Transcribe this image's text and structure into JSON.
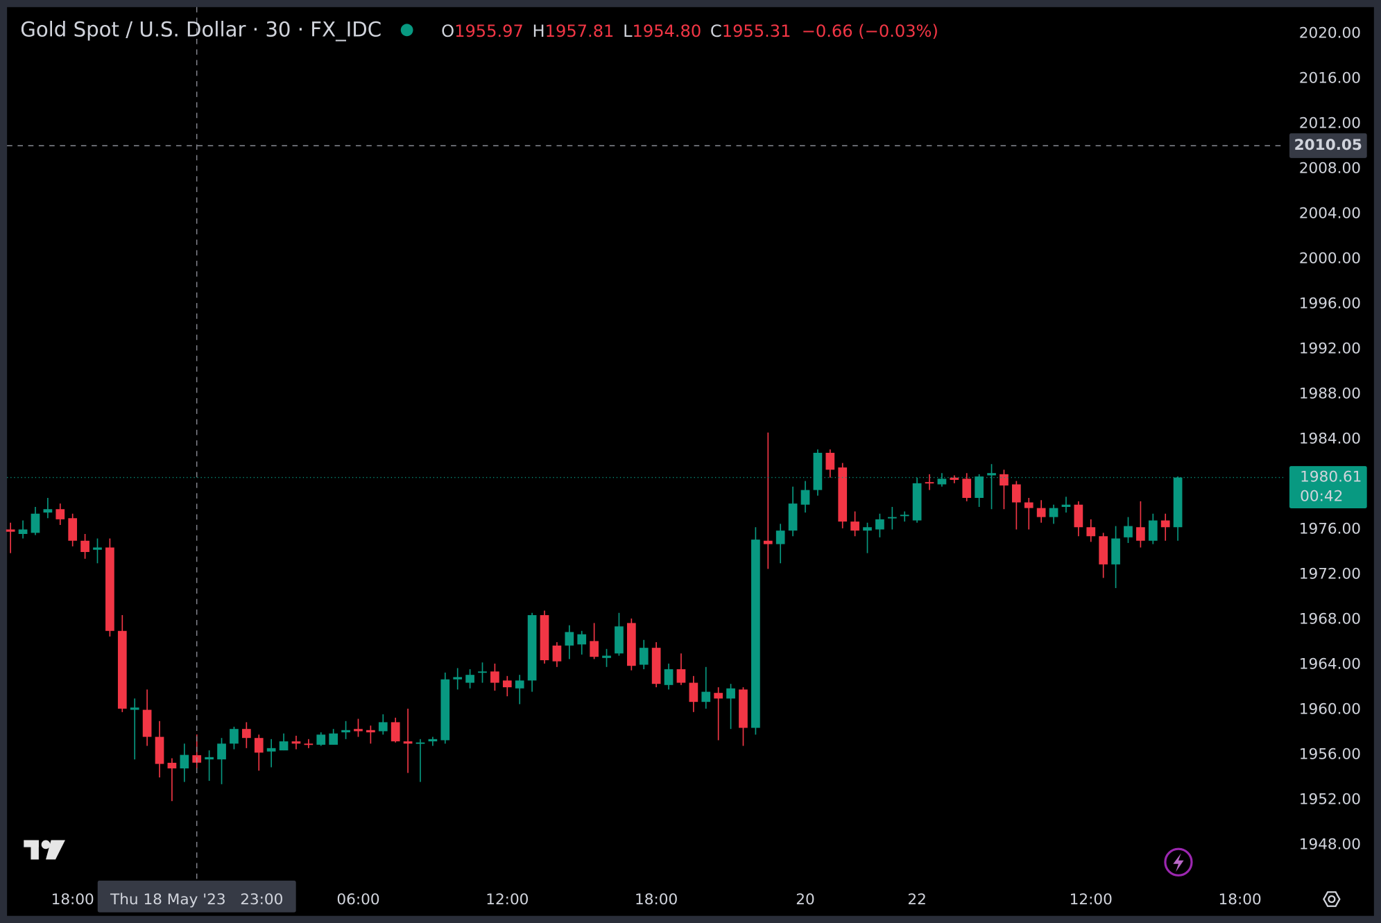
{
  "chart_data": {
    "type": "candlestick",
    "title": "Gold Spot / U.S. Dollar · 30 · FX_IDC",
    "legend": [
      [
        "O",
        "1955.97"
      ],
      [
        "H",
        "1957.81"
      ],
      [
        "L",
        "1954.80"
      ],
      [
        "C",
        "1955.31"
      ]
    ],
    "change": "−0.66 (−0.03%)",
    "up_color": "#089981",
    "down_color": "#f23645",
    "grid": false,
    "x": [
      0,
      1,
      2,
      3,
      4,
      5,
      6,
      7,
      8,
      9,
      10,
      11,
      12,
      13,
      14,
      15,
      16,
      17,
      18,
      19,
      20,
      21,
      22,
      23,
      24,
      25,
      26,
      27,
      28,
      29,
      30,
      31,
      32,
      33,
      34,
      35,
      36,
      37,
      38,
      39,
      40,
      41,
      42,
      43,
      44,
      45,
      46,
      47,
      48,
      49,
      50,
      51,
      52,
      53,
      54,
      55,
      56,
      57,
      58,
      59,
      60,
      61,
      62,
      63,
      64,
      65,
      66,
      67,
      68,
      69,
      70,
      71,
      72,
      73,
      74,
      75,
      76,
      77,
      78,
      79,
      80,
      81,
      82,
      83,
      84,
      85,
      86,
      87,
      88,
      89,
      90,
      91,
      92,
      93,
      94
    ],
    "open": [
      1976.0,
      1975.6,
      1975.7,
      1977.5,
      1977.8,
      1977.0,
      1975.0,
      1974.2,
      1974.4,
      1967.0,
      1960.0,
      1960.0,
      1957.6,
      1955.3,
      1954.8,
      1955.97,
      1955.6,
      1955.6,
      1957.0,
      1958.3,
      1957.5,
      1956.3,
      1956.4,
      1957.2,
      1957.0,
      1956.9,
      1956.9,
      1958.0,
      1958.3,
      1958.2,
      1958.1,
      1958.9,
      1957.2,
      1957.0,
      1957.2,
      1957.3,
      1962.7,
      1962.4,
      1963.3,
      1963.4,
      1962.6,
      1961.9,
      1962.6,
      1968.4,
      1965.7,
      1965.7,
      1965.8,
      1966.1,
      1964.6,
      1965.0,
      1967.7,
      1964.0,
      1965.5,
      1962.2,
      1963.6,
      1962.4,
      1960.7,
      1961.5,
      1961.0,
      1961.8,
      1958.4,
      1975.0,
      1974.7,
      1975.9,
      1978.2,
      1979.5,
      1982.8,
      1981.5,
      1976.7,
      1975.9,
      1976.0,
      1977.0,
      1977.2,
      1976.8,
      1980.2,
      1980.0,
      1980.6,
      1980.5,
      1978.8,
      1980.8,
      1980.9,
      1980.0,
      1978.4,
      1977.9,
      1977.1,
      1978.0,
      1978.2,
      1976.2,
      1975.4,
      1972.9,
      1975.3,
      1976.2,
      1975.0,
      1976.8,
      1976.2
    ],
    "high": [
      1976.6,
      1976.8,
      1978.0,
      1978.8,
      1978.3,
      1977.4,
      1975.6,
      1975.2,
      1975.2,
      1968.4,
      1961.0,
      1961.8,
      1959.0,
      1955.7,
      1957.0,
      1957.81,
      1956.4,
      1957.5,
      1958.5,
      1958.9,
      1957.8,
      1957.4,
      1957.9,
      1957.7,
      1957.4,
      1958.0,
      1958.3,
      1959.0,
      1959.2,
      1958.6,
      1959.6,
      1959.3,
      1960.1,
      1957.4,
      1957.6,
      1963.3,
      1963.7,
      1963.6,
      1964.2,
      1964.1,
      1963.0,
      1963.1,
      1968.6,
      1968.8,
      1966.0,
      1967.5,
      1967.0,
      1967.7,
      1965.4,
      1968.6,
      1968.1,
      1966.2,
      1966.0,
      1964.1,
      1965.0,
      1963.0,
      1963.8,
      1962.0,
      1962.3,
      1962.0,
      1976.2,
      1984.6,
      1976.5,
      1979.8,
      1980.3,
      1983.1,
      1983.1,
      1981.9,
      1977.6,
      1976.6,
      1977.4,
      1978.0,
      1977.6,
      1980.6,
      1980.9,
      1981.0,
      1980.8,
      1981.0,
      1980.9,
      1981.8,
      1981.3,
      1980.3,
      1978.8,
      1978.6,
      1978.2,
      1978.9,
      1978.5,
      1976.9,
      1975.7,
      1976.3,
      1977.1,
      1978.5,
      1977.4,
      1977.4,
      1980.7
    ],
    "low": [
      1973.9,
      1975.2,
      1975.5,
      1977.0,
      1976.4,
      1974.5,
      1973.4,
      1973.0,
      1966.5,
      1959.8,
      1955.6,
      1956.8,
      1954.0,
      1951.9,
      1953.6,
      1954.8,
      1953.7,
      1953.4,
      1956.5,
      1956.6,
      1954.6,
      1954.9,
      1956.4,
      1956.5,
      1956.6,
      1956.8,
      1956.9,
      1957.4,
      1957.6,
      1957.0,
      1957.8,
      1957.1,
      1954.4,
      1953.6,
      1956.8,
      1957.0,
      1961.8,
      1961.9,
      1962.4,
      1961.7,
      1961.2,
      1960.5,
      1961.6,
      1964.1,
      1963.8,
      1964.5,
      1964.9,
      1964.5,
      1963.8,
      1964.8,
      1963.5,
      1963.6,
      1962.0,
      1961.8,
      1962.2,
      1959.8,
      1960.1,
      1957.3,
      1958.3,
      1956.8,
      1957.8,
      1972.5,
      1973.0,
      1975.4,
      1977.5,
      1979.0,
      1980.6,
      1976.1,
      1975.4,
      1973.9,
      1975.3,
      1976.0,
      1976.7,
      1976.6,
      1979.5,
      1979.8,
      1980.1,
      1978.5,
      1978.0,
      1977.8,
      1977.8,
      1976.0,
      1976.0,
      1976.6,
      1976.5,
      1977.5,
      1975.4,
      1974.9,
      1971.7,
      1970.8,
      1974.8,
      1974.4,
      1974.7,
      1975.0,
      1975.0
    ],
    "close": [
      1975.8,
      1976.0,
      1977.4,
      1977.8,
      1976.9,
      1975.0,
      1974.0,
      1974.4,
      1967.0,
      1960.1,
      1960.2,
      1957.6,
      1955.2,
      1954.8,
      1956.0,
      1955.31,
      1955.8,
      1957.0,
      1958.3,
      1957.5,
      1956.2,
      1956.6,
      1957.2,
      1957.0,
      1956.9,
      1957.8,
      1957.9,
      1958.2,
      1958.1,
      1958.0,
      1958.9,
      1957.2,
      1957.0,
      1957.1,
      1957.4,
      1962.7,
      1962.9,
      1963.1,
      1963.4,
      1962.4,
      1962.0,
      1962.6,
      1968.4,
      1964.4,
      1964.3,
      1966.9,
      1966.7,
      1964.7,
      1964.8,
      1967.4,
      1963.9,
      1965.5,
      1962.3,
      1963.6,
      1962.4,
      1960.7,
      1961.6,
      1961.0,
      1961.9,
      1958.4,
      1975.1,
      1974.7,
      1975.9,
      1978.3,
      1979.5,
      1982.8,
      1981.3,
      1976.7,
      1975.9,
      1976.2,
      1976.9,
      1977.1,
      1977.3,
      1980.1,
      1980.1,
      1980.5,
      1980.4,
      1978.8,
      1980.7,
      1981.0,
      1979.9,
      1978.4,
      1977.9,
      1977.1,
      1977.9,
      1978.2,
      1976.2,
      1975.4,
      1972.9,
      1975.2,
      1976.3,
      1975.0,
      1976.8,
      1976.2,
      1980.61
    ],
    "xlim": [
      -0.28,
      102.7
    ],
    "xticks": [
      {
        "value": 5,
        "label": "18:00"
      },
      {
        "value": 28,
        "label": "06:00"
      },
      {
        "value": 40,
        "label": "12:00"
      },
      {
        "value": 52,
        "label": "18:00"
      },
      {
        "value": 64,
        "label": "20"
      },
      {
        "value": 73,
        "label": "22"
      },
      {
        "value": 87,
        "label": "12:00"
      },
      {
        "value": 99,
        "label": "18:00"
      }
    ],
    "ylim": [
      1945.0,
      2022.34
    ],
    "yticks": [
      {
        "value": 2020,
        "label": "2020.00"
      },
      {
        "value": 2016,
        "label": "2016.00"
      },
      {
        "value": 2012,
        "label": "2012.00"
      },
      {
        "value": 2008,
        "label": "2008.00"
      },
      {
        "value": 2004,
        "label": "2004.00"
      },
      {
        "value": 2000,
        "label": "2000.00"
      },
      {
        "value": 1996,
        "label": "1996.00"
      },
      {
        "value": 1992,
        "label": "1992.00"
      },
      {
        "value": 1988,
        "label": "1988.00"
      },
      {
        "value": 1984,
        "label": "1984.00"
      },
      {
        "value": 1980,
        "label": "1980.00"
      },
      {
        "value": 1976,
        "label": "1976.00"
      },
      {
        "value": 1972,
        "label": "1972.00"
      },
      {
        "value": 1968,
        "label": "1968.00"
      },
      {
        "value": 1964,
        "label": "1964.00"
      },
      {
        "value": 1960,
        "label": "1960.00"
      },
      {
        "value": 1956,
        "label": "1956.00"
      },
      {
        "value": 1952,
        "label": "1952.00"
      },
      {
        "value": 1948,
        "label": "1948.00"
      }
    ],
    "crosshair": {
      "x": 15,
      "y": 2010.05,
      "x_label": "Thu 18 May '23   23:00"
    },
    "last_price": {
      "value": 1980.61,
      "countdown": "00:42"
    }
  }
}
